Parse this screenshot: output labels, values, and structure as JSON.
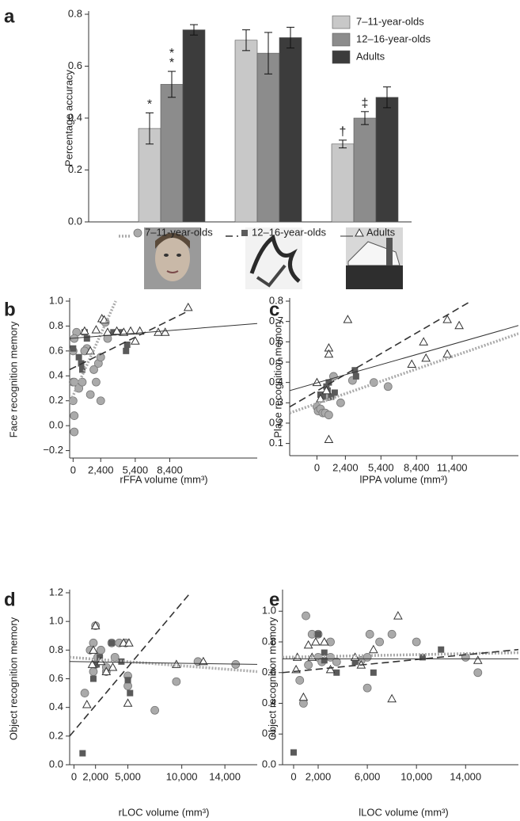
{
  "chart_data": [
    {
      "type": "bar",
      "label": "a",
      "ylabel": "Percentage accuracy",
      "categories": [
        null,
        null,
        null
      ],
      "ylim": [
        0,
        0.8
      ],
      "yticks": [
        {
          "value": 0,
          "label": "0.0"
        },
        0.2,
        0.4,
        0.6,
        0.8
      ],
      "series": [
        {
          "name": "7–11-year-olds",
          "color": "#c8c8c8",
          "values": [
            0.36,
            0.7,
            0.3
          ],
          "errors": [
            0.06,
            0.04,
            0.015
          ],
          "marks": [
            "*",
            null,
            "†"
          ]
        },
        {
          "name": "12–16-year-olds",
          "color": "#8c8c8c",
          "values": [
            0.53,
            0.65,
            0.4
          ],
          "errors": [
            0.05,
            0.08,
            0.025
          ],
          "marks": [
            "**",
            null,
            "‡"
          ]
        },
        {
          "name": "Adults",
          "color": "#3c3c3c",
          "values": [
            0.74,
            0.71,
            0.48
          ],
          "errors": [
            0.02,
            0.04,
            0.04
          ],
          "marks": [
            null,
            null,
            null
          ]
        }
      ]
    },
    {
      "type": "scatter",
      "label": "b",
      "xlabel": "rFFA volume (mm³)",
      "ylabel": "Face recognition memory",
      "xlim": [
        -300,
        16000
      ],
      "xticks": [
        0,
        {
          "value": 2400,
          "label": "2,400"
        },
        {
          "value": 5400,
          "label": "5,400"
        },
        {
          "value": 8400,
          "label": "8,400"
        }
      ],
      "ylim": [
        -0.26,
        1.0
      ],
      "yticks": [
        {
          "value": -0.2,
          "label": "−0.2"
        },
        {
          "value": 0,
          "label": "0.0"
        },
        0.2,
        0.4,
        0.6,
        0.8,
        {
          "value": 1,
          "label": "1.0"
        }
      ],
      "series": [
        {
          "marker": "circle",
          "color": "#aaaaaa",
          "x": [
            0,
            0,
            0,
            100,
            100,
            100,
            300,
            500,
            800,
            1200,
            1500,
            1800,
            2000,
            2200,
            2400,
            2400,
            2800,
            3000,
            100,
            1000
          ],
          "y": [
            0.6,
            0.35,
            0.2,
            0.08,
            -0.05,
            0.35,
            0.75,
            0.3,
            0.35,
            0.62,
            0.25,
            0.45,
            0.35,
            0.5,
            0.2,
            0.55,
            0.83,
            0.7,
            0.7,
            0.6
          ],
          "fit": {
            "x": [
              -300,
              3700
            ],
            "y": [
              0.18,
              1.0
            ]
          }
        },
        {
          "marker": "square",
          "color": "#5a5a5a",
          "x": [
            0,
            500,
            700,
            800,
            1200,
            1000,
            3500,
            4200,
            4700,
            4600
          ],
          "y": [
            0.62,
            0.55,
            0.5,
            0.45,
            0.7,
            0.75,
            0.75,
            0.75,
            0.65,
            0.6
          ],
          "fit": {
            "x": [
              -300,
              10000
            ],
            "y": [
              0.45,
              0.92
            ]
          }
        },
        {
          "marker": "triangle",
          "color": "#333333",
          "x": [
            1000,
            1500,
            2000,
            2500,
            2700,
            3000,
            3800,
            4400,
            5000,
            5400,
            5800,
            7400,
            8000,
            10000
          ],
          "y": [
            0.76,
            0.6,
            0.77,
            0.86,
            0.85,
            0.75,
            0.76,
            0.75,
            0.76,
            0.68,
            0.76,
            0.75,
            0.75,
            0.95
          ],
          "fit": {
            "x": [
              -300,
              16000
            ],
            "y": [
              0.7,
              0.82
            ]
          }
        }
      ]
    },
    {
      "type": "scatter",
      "label": "c",
      "xlabel": "lPPA volume (mm³)",
      "ylabel": "Place recognition memory",
      "xlim": [
        -2300,
        17000
      ],
      "xticks": [
        0,
        {
          "value": 2400,
          "label": "2,400"
        },
        {
          "value": 5400,
          "label": "5,400"
        },
        {
          "value": 8400,
          "label": "8,400"
        },
        {
          "value": 11400,
          "label": "11,400"
        }
      ],
      "ylim": [
        0.04,
        0.8
      ],
      "yticks": [
        0.1,
        0.2,
        0.3,
        0.4,
        0.5,
        0.6,
        0.7,
        0.8
      ],
      "series": [
        {
          "marker": "circle",
          "color": "#aaaaaa",
          "x": [
            0,
            100,
            300,
            500,
            700,
            1000,
            1000,
            2000,
            3000,
            4800,
            6000,
            800,
            1400
          ],
          "y": [
            0.28,
            0.26,
            0.27,
            0.25,
            0.25,
            0.24,
            0.33,
            0.3,
            0.41,
            0.4,
            0.38,
            0.34,
            0.43
          ],
          "fit": {
            "x": [
              -2300,
              17000
            ],
            "y": [
              0.25,
              0.64
            ]
          }
        },
        {
          "marker": "square",
          "color": "#5a5a5a",
          "x": [
            500,
            800,
            900,
            1000,
            1200,
            1500,
            3200,
            3300,
            300
          ],
          "y": [
            0.33,
            0.38,
            0.36,
            0.4,
            0.33,
            0.35,
            0.46,
            0.43,
            0.34
          ],
          "fit": {
            "x": [
              -2300,
              13000
            ],
            "y": [
              0.28,
              0.8
            ]
          }
        },
        {
          "marker": "triangle",
          "color": "#333333",
          "x": [
            0,
            1000,
            1000,
            1000,
            2600,
            8000,
            9000,
            9200,
            11000,
            11000,
            12000,
            300,
            800
          ],
          "y": [
            0.4,
            0.57,
            0.54,
            0.12,
            0.71,
            0.49,
            0.6,
            0.52,
            0.71,
            0.54,
            0.68,
            0.32,
            0.36
          ],
          "fit": {
            "x": [
              -2300,
              17000
            ],
            "y": [
              0.36,
              0.68
            ]
          }
        }
      ]
    },
    {
      "type": "scatter",
      "label": "d",
      "xlabel": "rLOC volume (mm³)",
      "ylabel": "Object recognition memory",
      "xlim": [
        -400,
        17000
      ],
      "xticks": [
        0,
        {
          "value": 2000,
          "label": "2,000"
        },
        {
          "value": 5000,
          "label": "5,000"
        },
        {
          "value": 10000,
          "label": "10,000"
        },
        {
          "value": 14000,
          "label": "14,000"
        }
      ],
      "ylim": [
        0,
        1.2
      ],
      "yticks": [
        {
          "value": 0,
          "label": "0.0"
        },
        0.2,
        0.4,
        0.6,
        0.8,
        {
          "value": 1,
          "label": "1.0"
        },
        1.2
      ],
      "series": [
        {
          "marker": "circle",
          "color": "#aaaaaa",
          "x": [
            1000,
            1500,
            1800,
            2000,
            1800,
            2200,
            2500,
            3000,
            3500,
            3800,
            4200,
            4800,
            5000,
            5000,
            7500,
            9500,
            11500,
            15000,
            2000,
            3000
          ],
          "y": [
            0.5,
            0.8,
            0.85,
            0.97,
            0.65,
            0.75,
            0.8,
            0.65,
            0.85,
            0.75,
            0.85,
            0.85,
            0.55,
            0.62,
            0.38,
            0.58,
            0.72,
            0.7,
            0.7,
            0.68
          ],
          "fit": {
            "x": [
              -400,
              17000
            ],
            "y": [
              0.75,
              0.65
            ]
          }
        },
        {
          "marker": "square",
          "color": "#5a5a5a",
          "x": [
            800,
            1800,
            2400,
            3500,
            4400,
            5000,
            5200,
            2100
          ],
          "y": [
            0.08,
            0.6,
            0.75,
            0.85,
            0.72,
            0.59,
            0.5,
            0.7
          ],
          "fit": {
            "x": [
              -400,
              10800
            ],
            "y": [
              0.2,
              1.2
            ]
          }
        },
        {
          "marker": "triangle",
          "color": "#333333",
          "x": [
            1200,
            1700,
            2000,
            2500,
            3000,
            3600,
            4600,
            5000,
            5100,
            9500,
            12000,
            1800
          ],
          "y": [
            0.42,
            0.7,
            0.97,
            0.72,
            0.65,
            0.68,
            0.85,
            0.43,
            0.85,
            0.7,
            0.72,
            0.8
          ],
          "fit": {
            "x": [
              -400,
              17000
            ],
            "y": [
              0.72,
              0.7
            ]
          }
        }
      ]
    },
    {
      "type": "scatter",
      "label": "e",
      "xlabel": "lLOC volume (mm³)",
      "ylabel": "Object  recognition memory",
      "xlim": [
        -900,
        18300
      ],
      "xticks": [
        0,
        {
          "value": 2000,
          "label": "2,000"
        },
        {
          "value": 6000,
          "label": "6,000"
        },
        {
          "value": 10000,
          "label": "10,000"
        },
        {
          "value": 14000,
          "label": "14,000"
        }
      ],
      "ylim": [
        0,
        1.12
      ],
      "yticks": [
        {
          "value": 0,
          "label": "0.0"
        },
        0.2,
        0.4,
        0.6,
        0.8,
        {
          "value": 1,
          "label": "1.0"
        }
      ],
      "series": [
        {
          "marker": "circle",
          "color": "#aaaaaa",
          "x": [
            500,
            800,
            1000,
            1200,
            1500,
            2000,
            2000,
            2300,
            3000,
            3000,
            3500,
            5500,
            6000,
            6200,
            7000,
            8000,
            10000,
            14000,
            15000,
            6000
          ],
          "y": [
            0.55,
            0.4,
            0.97,
            0.65,
            0.85,
            0.7,
            0.85,
            0.67,
            0.8,
            0.7,
            0.67,
            0.68,
            0.7,
            0.85,
            0.8,
            0.85,
            0.8,
            0.7,
            0.6,
            0.5
          ],
          "fit": {
            "x": [
              -900,
              18300
            ],
            "y": [
              0.7,
              0.73
            ]
          }
        },
        {
          "marker": "square",
          "color": "#5a5a5a",
          "x": [
            0,
            2000,
            2500,
            3500,
            5000,
            6500,
            10500,
            12000,
            2500
          ],
          "y": [
            0.08,
            0.85,
            0.73,
            0.6,
            0.67,
            0.6,
            0.7,
            0.75,
            0.68
          ],
          "fit": {
            "x": [
              -900,
              18300
            ],
            "y": [
              0.6,
              0.75
            ]
          }
        },
        {
          "marker": "triangle",
          "color": "#333333",
          "x": [
            200,
            300,
            800,
            1500,
            1800,
            2500,
            3000,
            5000,
            5500,
            6500,
            8000,
            8500,
            15000,
            1200
          ],
          "y": [
            0.62,
            0.7,
            0.44,
            0.7,
            0.8,
            0.8,
            0.62,
            0.7,
            0.65,
            0.75,
            0.43,
            0.97,
            0.68,
            0.78
          ],
          "fit": {
            "x": [
              -900,
              18300
            ],
            "y": [
              0.69,
              0.69
            ]
          }
        }
      ]
    }
  ],
  "legend": [
    {
      "name": "7–11-year-olds",
      "marker": "circle",
      "color": "#aaaaaa"
    },
    {
      "name": "12–16-year-olds",
      "marker": "square",
      "color": "#5a5a5a"
    },
    {
      "name": "Adults",
      "marker": "triangle",
      "color": "#333333"
    }
  ]
}
